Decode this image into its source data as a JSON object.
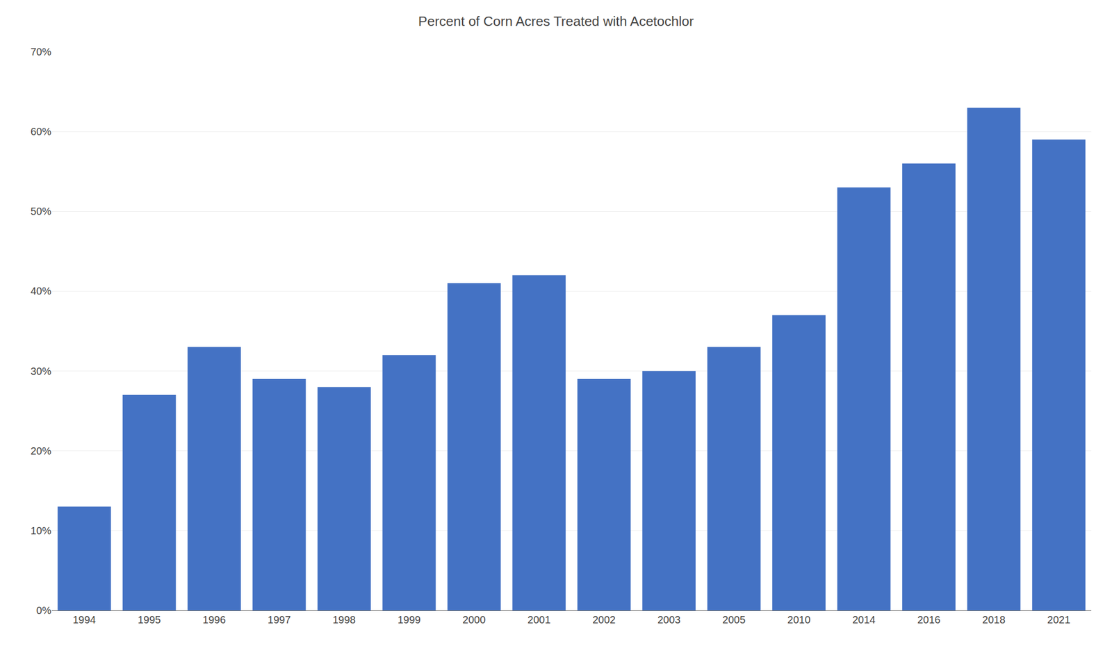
{
  "chart_data": {
    "type": "bar",
    "title": "Percent of Corn Acres Treated with Acetochlor",
    "categories": [
      "1994",
      "1995",
      "1996",
      "1997",
      "1998",
      "1999",
      "2000",
      "2001",
      "2002",
      "2003",
      "2005",
      "2010",
      "2014",
      "2016",
      "2018",
      "2021"
    ],
    "values": [
      13,
      27,
      33,
      29,
      28,
      32,
      41,
      42,
      29,
      30,
      33,
      37,
      53,
      56,
      63,
      59
    ],
    "color": "#4472C4",
    "ylim": [
      0,
      70
    ],
    "yticks": [
      {
        "value": 0,
        "label": "0%"
      },
      {
        "value": 10,
        "label": "10%"
      },
      {
        "value": 20,
        "label": "20%"
      },
      {
        "value": 30,
        "label": "30%"
      },
      {
        "value": 40,
        "label": "40%"
      },
      {
        "value": 50,
        "label": "50%"
      },
      {
        "value": 60,
        "label": "60%"
      },
      {
        "value": 70,
        "label": "70%"
      }
    ],
    "grid": true
  }
}
